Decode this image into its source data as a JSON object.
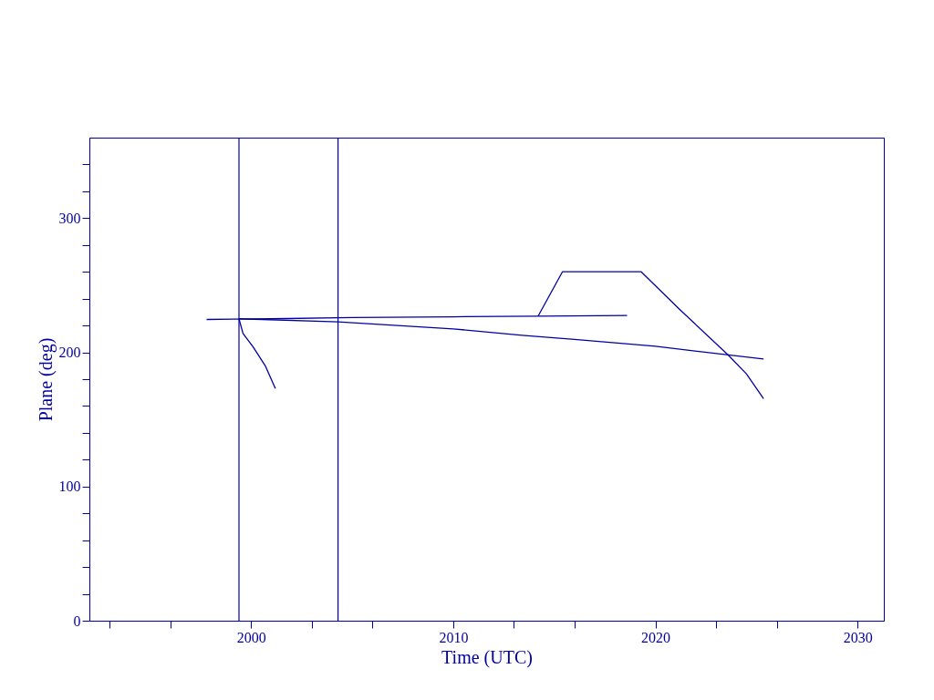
{
  "chart_data": {
    "type": "line",
    "xlabel": "Time (UTC)",
    "ylabel": "Plane (deg)",
    "xlim": [
      1992,
      2031.3
    ],
    "ylim": [
      0,
      360
    ],
    "xticks": [
      {
        "value": 1993,
        "label": null
      },
      {
        "value": 1996,
        "label": null
      },
      2000,
      {
        "value": 2003,
        "label": null
      },
      {
        "value": 2006,
        "label": null
      },
      2010,
      {
        "value": 2013,
        "label": null
      },
      {
        "value": 2016,
        "label": null
      },
      2020,
      {
        "value": 2023,
        "label": null
      },
      {
        "value": 2026,
        "label": null
      },
      2030
    ],
    "yticks": [
      0,
      {
        "value": 20,
        "label": null
      },
      {
        "value": 40,
        "label": null
      },
      {
        "value": 60,
        "label": null
      },
      {
        "value": 80,
        "label": null
      },
      100,
      {
        "value": 120,
        "label": null
      },
      {
        "value": 140,
        "label": null
      },
      {
        "value": 160,
        "label": null
      },
      {
        "value": 180,
        "label": null
      },
      200,
      {
        "value": 220,
        "label": null
      },
      {
        "value": 240,
        "label": null
      },
      {
        "value": 260,
        "label": null
      },
      {
        "value": 280,
        "label": null
      },
      300,
      {
        "value": 320,
        "label": null
      },
      {
        "value": 340,
        "label": null
      }
    ],
    "grid": false,
    "marker": "none",
    "line_style": "solid",
    "series": [
      {
        "color": "#0000a0",
        "x": [
          1997.8,
          2001,
          2005,
          2010,
          2014.2,
          2018.6
        ],
        "values": [
          224.5,
          225,
          226,
          226.5,
          227,
          227.4
        ]
      },
      {
        "color": "#0000a0",
        "x": [
          2014.2,
          2015.4,
          2019.3,
          2021.2,
          2023.6,
          2024.5,
          2025.35
        ],
        "values": [
          227,
          260,
          260,
          232,
          198,
          184,
          165.5
        ]
      },
      {
        "color": "#0000a0",
        "x": [
          1999.4,
          2004.3,
          2010,
          2013.4,
          2016,
          2020,
          2025.35
        ],
        "values": [
          225,
          222.7,
          217.5,
          212.7,
          209.7,
          204.5,
          195
        ]
      },
      {
        "color": "#0000a0",
        "x": [
          1999.4,
          1999.6,
          2000.1,
          2000.7,
          2001.2
        ],
        "values": [
          225,
          214,
          204,
          190,
          173
        ]
      }
    ],
    "ref_lines": [
      {
        "axis": "x",
        "value": 1999.4,
        "color": "#0000a0"
      },
      {
        "axis": "x",
        "value": 2004.3,
        "color": "#0000a0"
      }
    ]
  }
}
